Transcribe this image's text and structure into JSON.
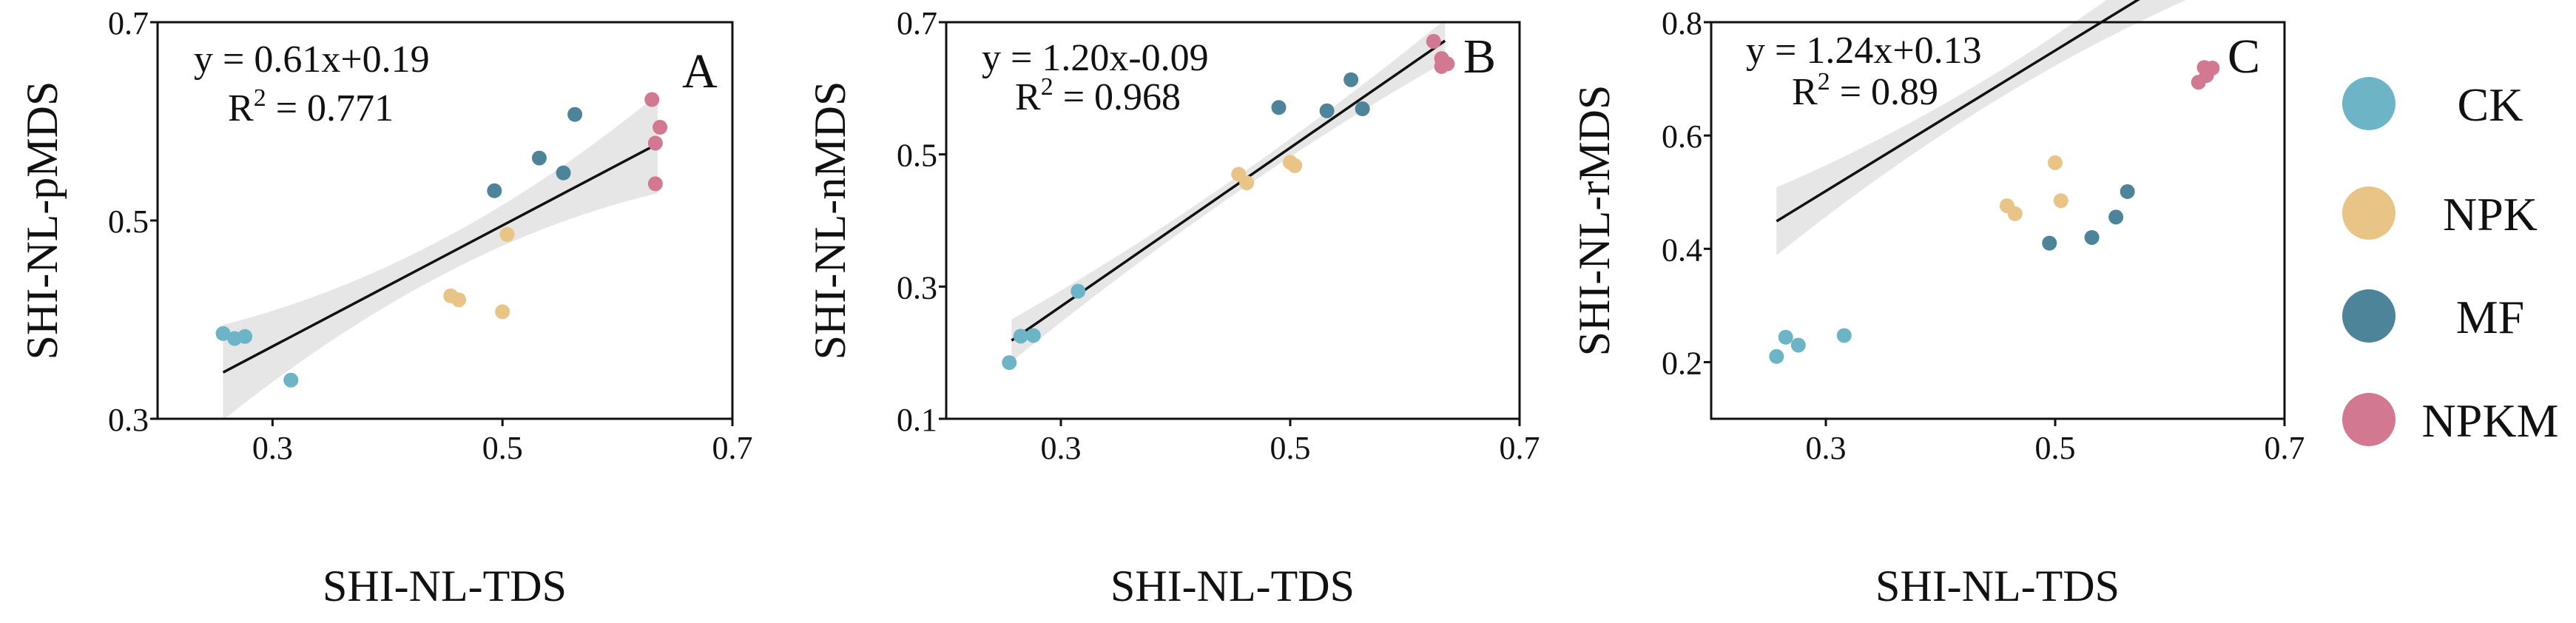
{
  "legend": {
    "items": [
      {
        "label": "CK",
        "color": "#6db4c6"
      },
      {
        "label": "NPK",
        "color": "#e8c586"
      },
      {
        "label": "MF",
        "color": "#4e8499"
      },
      {
        "label": "NPKM",
        "color": "#d27890"
      }
    ]
  },
  "chart_data": [
    {
      "type": "scatter",
      "panel": "A",
      "xlabel": "SHI-NL-TDS",
      "ylabel": "SHI-NL-pMDS",
      "xlim": [
        0.2,
        0.7
      ],
      "ylim": [
        0.3,
        0.7
      ],
      "xticks": [
        "0.3",
        "0.5",
        "0.7"
      ],
      "yticks": [
        "0.3",
        "0.5",
        "0.7"
      ],
      "equation": "y = 0.61x+0.19",
      "r2_prefix": "R",
      "r2_sup": "2",
      "r2_value": " = 0.771",
      "fit": {
        "slope": 0.61,
        "intercept": 0.19,
        "x_range": [
          0.257,
          0.635
        ],
        "ci": [
          0.048,
          0.018,
          0.05
        ]
      },
      "series": [
        {
          "name": "CK",
          "points": [
            [
              0.257,
              0.386
            ],
            [
              0.267,
              0.381
            ],
            [
              0.276,
              0.383
            ],
            [
              0.316,
              0.339
            ]
          ]
        },
        {
          "name": "NPK",
          "points": [
            [
              0.455,
              0.424
            ],
            [
              0.462,
              0.42
            ],
            [
              0.5,
              0.408
            ],
            [
              0.504,
              0.486
            ]
          ]
        },
        {
          "name": "MF",
          "points": [
            [
              0.493,
              0.53
            ],
            [
              0.532,
              0.563
            ],
            [
              0.553,
              0.548
            ],
            [
              0.563,
              0.607
            ]
          ]
        },
        {
          "name": "NPKM",
          "points": [
            [
              0.63,
              0.622
            ],
            [
              0.633,
              0.578
            ],
            [
              0.637,
              0.594
            ],
            [
              0.633,
              0.537
            ]
          ]
        }
      ]
    },
    {
      "type": "scatter",
      "panel": "B",
      "xlabel": "SHI-NL-TDS",
      "ylabel": "SHI-NL-nMDS",
      "xlim": [
        0.2,
        0.7
      ],
      "ylim": [
        0.1,
        0.7
      ],
      "xticks": [
        "0.3",
        "0.5",
        "0.7"
      ],
      "yticks": [
        "0.1",
        "0.3",
        "0.5",
        "0.7"
      ],
      "equation": "y = 1.20x-0.09",
      "r2_prefix": "R",
      "r2_sup": "2",
      "r2_value": " = 0.968",
      "fit": {
        "slope": 1.2,
        "intercept": -0.09,
        "x_range": [
          0.257,
          0.635
        ],
        "ci": [
          0.032,
          0.012,
          0.032
        ]
      },
      "series": [
        {
          "name": "CK",
          "points": [
            [
              0.255,
              0.185
            ],
            [
              0.265,
              0.225
            ],
            [
              0.276,
              0.226
            ],
            [
              0.315,
              0.293
            ]
          ]
        },
        {
          "name": "NPK",
          "points": [
            [
              0.455,
              0.47
            ],
            [
              0.462,
              0.457
            ],
            [
              0.5,
              0.488
            ],
            [
              0.504,
              0.483
            ]
          ]
        },
        {
          "name": "MF",
          "points": [
            [
              0.49,
              0.571
            ],
            [
              0.532,
              0.566
            ],
            [
              0.553,
              0.613
            ],
            [
              0.563,
              0.569
            ]
          ]
        },
        {
          "name": "NPKM",
          "points": [
            [
              0.625,
              0.671
            ],
            [
              0.632,
              0.645
            ],
            [
              0.632,
              0.633
            ],
            [
              0.637,
              0.637
            ]
          ]
        }
      ]
    },
    {
      "type": "scatter",
      "panel": "C",
      "xlabel": "SHI-NL-TDS",
      "ylabel": "SHI-NL-rMDS",
      "xlim": [
        0.2,
        0.7
      ],
      "ylim": [
        0.1,
        0.8
      ],
      "xticks": [
        "0.3",
        "0.5",
        "0.7"
      ],
      "yticks": [
        "0.2",
        "0.4",
        "0.6",
        "0.8"
      ],
      "equation": "y = 1.24x+0.13",
      "r2_prefix": "R",
      "r2_sup": "2",
      "r2_value": " = 0.89",
      "fit": {
        "slope": 1.24,
        "intercept": 0.13,
        "x_range": [
          0.257,
          0.635
        ],
        "ci": [
          0.06,
          0.024,
          0.06
        ]
      },
      "series": [
        {
          "name": "CK",
          "points": [
            [
              0.257,
              0.21
            ],
            [
              0.265,
              0.244
            ],
            [
              0.276,
              0.23
            ],
            [
              0.316,
              0.247
            ]
          ]
        },
        {
          "name": "NPK",
          "points": [
            [
              0.458,
              0.476
            ],
            [
              0.465,
              0.462
            ],
            [
              0.5,
              0.552
            ],
            [
              0.505,
              0.485
            ]
          ]
        },
        {
          "name": "MF",
          "points": [
            [
              0.495,
              0.41
            ],
            [
              0.532,
              0.42
            ],
            [
              0.553,
              0.456
            ],
            [
              0.563,
              0.501
            ]
          ]
        },
        {
          "name": "NPKM",
          "points": [
            [
              0.625,
              0.694
            ],
            [
              0.63,
              0.72
            ],
            [
              0.632,
              0.706
            ],
            [
              0.637,
              0.719
            ]
          ]
        }
      ]
    }
  ]
}
